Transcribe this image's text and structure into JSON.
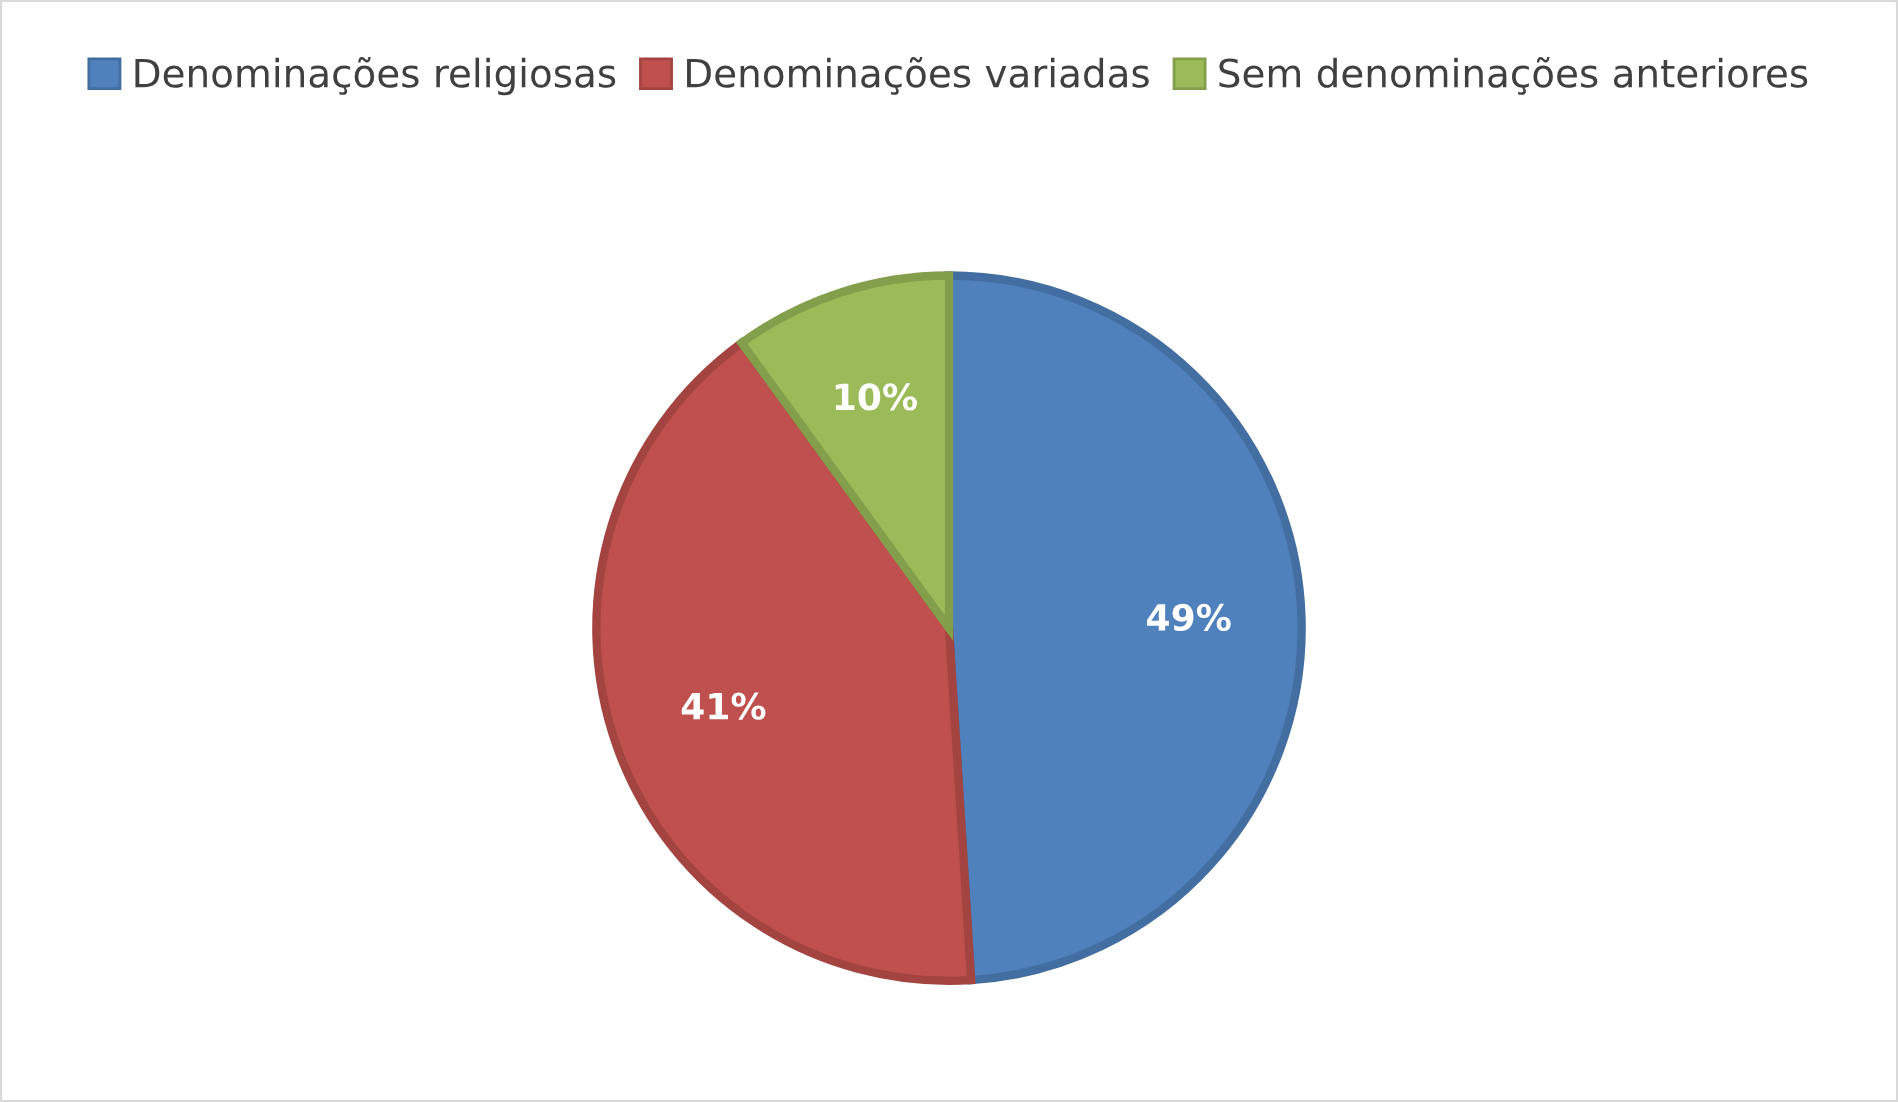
{
  "chart_data": {
    "type": "pie",
    "categories": [
      "Denominações religiosas",
      "Denominações variadas",
      "Sem denominações anteriores"
    ],
    "values": [
      49,
      41,
      10
    ],
    "colors": [
      "#4f81bd",
      "#c0504d",
      "#9bbb59"
    ],
    "value_labels": [
      "49%",
      "41%",
      "10%"
    ],
    "legend": "top"
  }
}
